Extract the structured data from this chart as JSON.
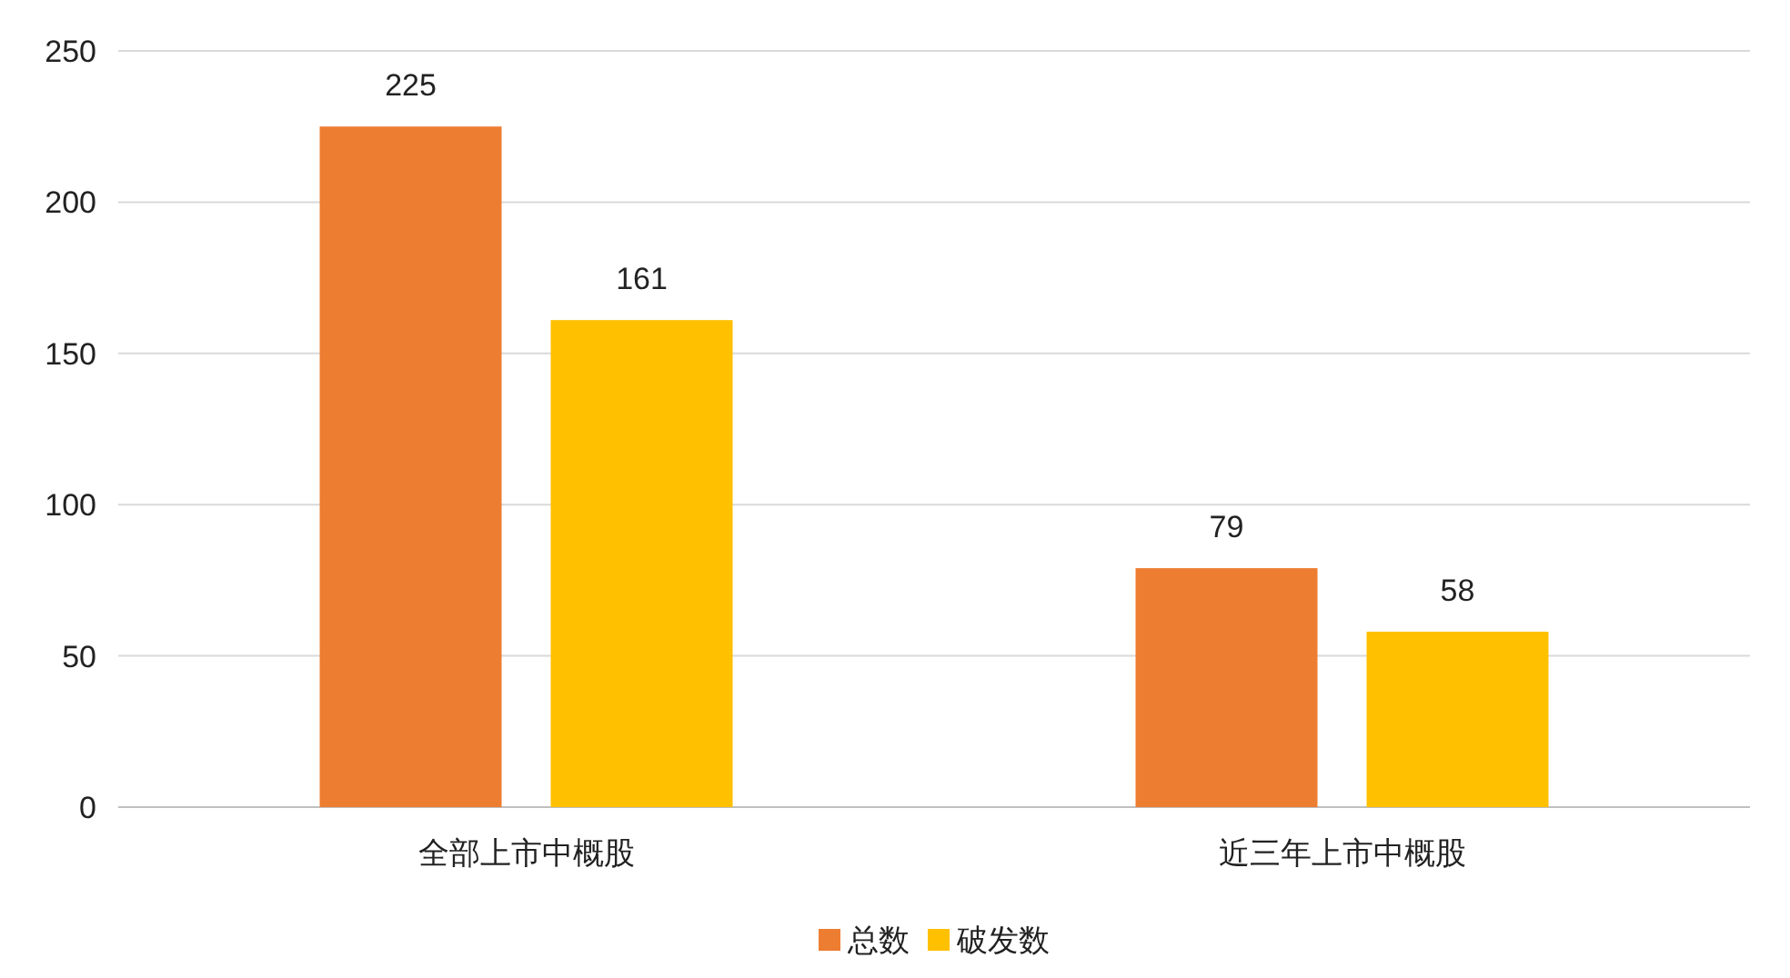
{
  "chart_data": {
    "type": "bar",
    "categories": [
      "全部上市中概股",
      "近三年上市中概股"
    ],
    "series": [
      {
        "name": "总数",
        "color": "#ed7d31",
        "values": [
          225,
          79
        ]
      },
      {
        "name": "破发数",
        "color": "#ffc000",
        "values": [
          161,
          58
        ]
      }
    ],
    "ylim": [
      0,
      250
    ],
    "yticks": [
      0,
      50,
      100,
      150,
      200,
      250
    ],
    "grid": "y",
    "legend": "bottom",
    "data_labels": true
  }
}
